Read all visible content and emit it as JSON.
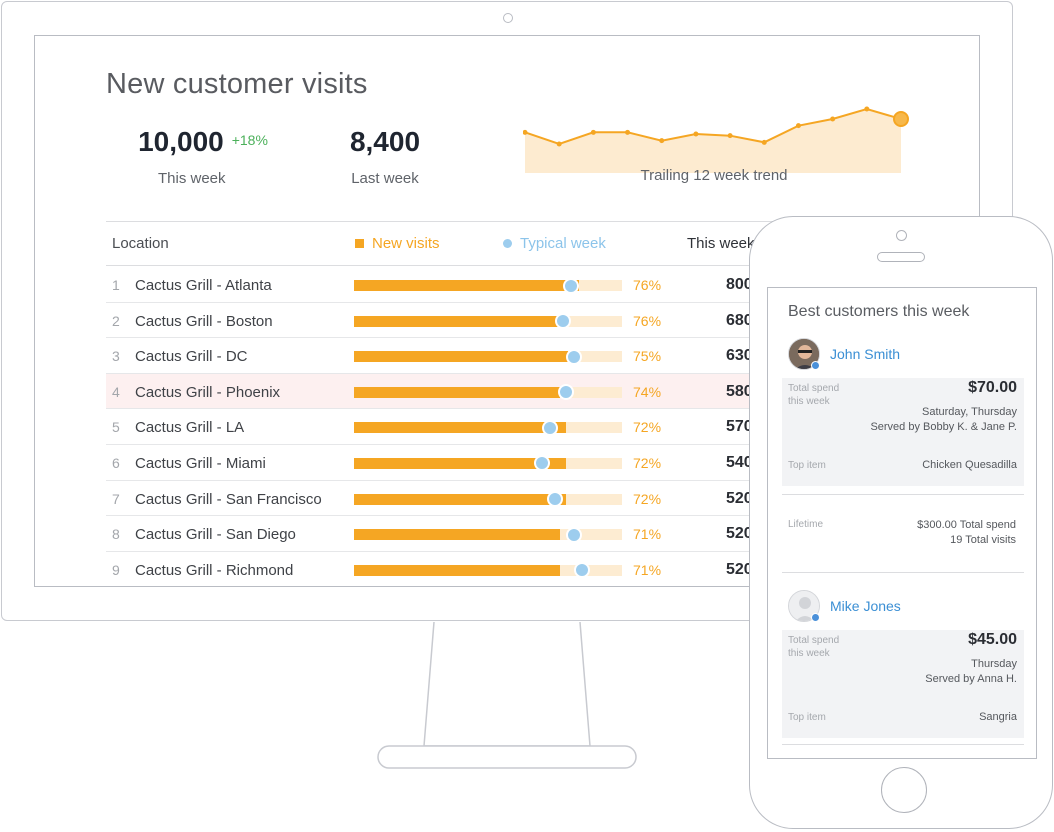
{
  "dashboard": {
    "title": "New customer visits",
    "this_week": {
      "value": "10,000",
      "delta": "+18%",
      "label": "This week"
    },
    "last_week": {
      "value": "8,400",
      "label": "Last week"
    },
    "trend": {
      "label": "Trailing 12 week trend",
      "values": [
        68,
        61,
        68,
        68,
        63,
        67,
        66,
        62,
        72,
        76,
        82,
        76
      ],
      "color": "#f5a623"
    }
  },
  "table": {
    "headers": {
      "location": "Location",
      "new_visits": "New visits",
      "typical_week": "Typical week",
      "this_week": "This week"
    },
    "rows": [
      {
        "rank": "1",
        "location": "Cactus Grill - Atlanta",
        "new_visits_fraction": 0.84,
        "typical_fraction": 0.81,
        "percent": "76%",
        "this_week": "800"
      },
      {
        "rank": "2",
        "location": "Cactus Grill - Boston",
        "new_visits_fraction": 0.8,
        "typical_fraction": 0.78,
        "percent": "76%",
        "this_week": "680"
      },
      {
        "rank": "3",
        "location": "Cactus Grill - DC",
        "new_visits_fraction": 0.8,
        "typical_fraction": 0.82,
        "percent": "75%",
        "this_week": "630"
      },
      {
        "rank": "4",
        "location": "Cactus Grill - Phoenix",
        "new_visits_fraction": 0.77,
        "typical_fraction": 0.79,
        "percent": "74%",
        "this_week": "580",
        "highlighted": true
      },
      {
        "rank": "5",
        "location": "Cactus Grill - LA",
        "new_visits_fraction": 0.79,
        "typical_fraction": 0.73,
        "percent": "72%",
        "this_week": "570"
      },
      {
        "rank": "6",
        "location": "Cactus Grill - Miami",
        "new_visits_fraction": 0.79,
        "typical_fraction": 0.7,
        "percent": "72%",
        "this_week": "540"
      },
      {
        "rank": "7",
        "location": "Cactus Grill - San Francisco",
        "new_visits_fraction": 0.79,
        "typical_fraction": 0.75,
        "percent": "72%",
        "this_week": "520"
      },
      {
        "rank": "8",
        "location": "Cactus Grill - San Diego",
        "new_visits_fraction": 0.77,
        "typical_fraction": 0.82,
        "percent": "71%",
        "this_week": "520"
      },
      {
        "rank": "9",
        "location": "Cactus Grill - Richmond",
        "new_visits_fraction": 0.77,
        "typical_fraction": 0.85,
        "percent": "71%",
        "this_week": "520"
      }
    ]
  },
  "phone": {
    "title": "Best customers this week",
    "customers": [
      {
        "name": "John Smith",
        "total_spend_label_1": "Total spend",
        "total_spend_label_2": "this week",
        "amount": "$70.00",
        "days": "Saturday, Thursday",
        "served_by": "Served by Bobby K. & Jane P.",
        "top_item_label": "Top item",
        "top_item": "Chicken Quesadilla",
        "lifetime_label": "Lifetime",
        "lifetime_spend": "$300.00 Total spend",
        "lifetime_visits": "19 Total visits"
      },
      {
        "name": "Mike Jones",
        "total_spend_label_1": "Total spend",
        "total_spend_label_2": "this week",
        "amount": "$45.00",
        "days": "Thursday",
        "served_by": "Served by Anna H.",
        "top_item_label": "Top item",
        "top_item": "Sangria"
      }
    ]
  },
  "colors": {
    "accent_orange": "#f5a623",
    "typical_blue": "#9dcdee",
    "positive_green": "#4bb05a",
    "link_blue": "#3b8fd4"
  }
}
